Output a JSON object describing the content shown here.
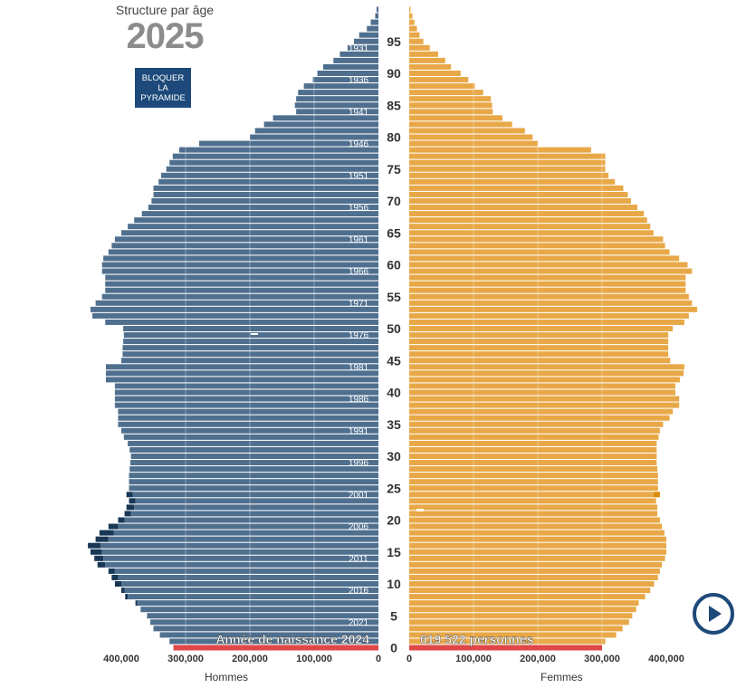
{
  "header": {
    "subtitle": "Structure par âge",
    "year": "2025"
  },
  "controls": {
    "lock_label": "BLOQUER LA PYRAMIDE",
    "play_icon": "play-icon"
  },
  "colors": {
    "men": "#4f6f8f",
    "men_excess": "#173755",
    "women": "#e8a847",
    "women_excess": "#dd8b0a",
    "highlight": "#e04848",
    "accent": "#1d4a7a"
  },
  "chart_data": {
    "type": "bar",
    "title": "Structure par âge",
    "year": 2025,
    "left_label": "Hommes",
    "right_label": "Femmes",
    "x_ticks_left": [
      "400,000",
      "300,000",
      "200,000",
      "100,000",
      "0"
    ],
    "x_ticks_right": [
      "0",
      "100,000",
      "200,000",
      "300,000",
      "400,000"
    ],
    "x_range": [
      0,
      450000
    ],
    "age_range": [
      0,
      100
    ],
    "age_ticks": [
      0,
      5,
      10,
      15,
      20,
      25,
      30,
      35,
      40,
      45,
      50,
      55,
      60,
      65,
      70,
      75,
      80,
      85,
      90,
      95
    ],
    "birth_year_labels": [
      {
        "age": 4,
        "label": "2021"
      },
      {
        "age": 9,
        "label": "2016"
      },
      {
        "age": 14,
        "label": "2011"
      },
      {
        "age": 19,
        "label": "2006"
      },
      {
        "age": 24,
        "label": "2001"
      },
      {
        "age": 29,
        "label": "1996"
      },
      {
        "age": 34,
        "label": "1991"
      },
      {
        "age": 39,
        "label": "1986"
      },
      {
        "age": 44,
        "label": "1981"
      },
      {
        "age": 49,
        "label": "1976"
      },
      {
        "age": 54,
        "label": "1971"
      },
      {
        "age": 59,
        "label": "1966"
      },
      {
        "age": 64,
        "label": "1961"
      },
      {
        "age": 69,
        "label": "1956"
      },
      {
        "age": 74,
        "label": "1951"
      },
      {
        "age": 79,
        "label": "1946"
      },
      {
        "age": 84,
        "label": "1941"
      },
      {
        "age": 89,
        "label": "1936"
      },
      {
        "age": 94,
        "label": "1931"
      }
    ],
    "highlight": {
      "age": 0,
      "birth_label": "Année de naissance 2024",
      "count_label": "619 522 personnes"
    },
    "men": [
      319000,
      325000,
      340000,
      350000,
      355000,
      360000,
      370000,
      375000,
      390000,
      395000,
      400000,
      405000,
      410000,
      425000,
      428000,
      430000,
      432000,
      420000,
      412000,
      405000,
      395000,
      385000,
      380000,
      378000,
      382000,
      388000,
      388000,
      388000,
      387000,
      386000,
      385000,
      387000,
      390000,
      396000,
      400000,
      405000,
      405000,
      405000,
      410000,
      410000,
      410000,
      410000,
      424000,
      424000,
      424000,
      400000,
      398000,
      398000,
      397000,
      396000,
      397000,
      425000,
      445000,
      448000,
      440000,
      430000,
      425000,
      425000,
      425000,
      430000,
      430000,
      428000,
      420000,
      415000,
      410000,
      400000,
      390000,
      380000,
      368000,
      358000,
      353000,
      350000,
      350000,
      342000,
      338000,
      330000,
      325000,
      320000,
      310000,
      279000,
      200000,
      192000,
      178000,
      164000,
      128000,
      130000,
      128000,
      125000,
      116000,
      102000,
      95000,
      86000,
      70000,
      60000,
      48000,
      38000,
      30000,
      18000,
      12000,
      5000,
      3000
    ],
    "men_excess": [
      0,
      0,
      0,
      0,
      0,
      0,
      0,
      3000,
      4000,
      5000,
      10000,
      10000,
      10000,
      12000,
      14000,
      18000,
      20000,
      20000,
      22000,
      15000,
      10000,
      10000,
      12000,
      10000,
      10000,
      0,
      0,
      0,
      0,
      0,
      0,
      0,
      0,
      0,
      0,
      0,
      0,
      0,
      0,
      0,
      0,
      0,
      0,
      0,
      0,
      0,
      0,
      0,
      0,
      0,
      0,
      0,
      0,
      0,
      0,
      0,
      0,
      0,
      0,
      0,
      0,
      0,
      0,
      0,
      0,
      0,
      0,
      0,
      0,
      0,
      0,
      0,
      0,
      0,
      0,
      0,
      0,
      0,
      0,
      0,
      0,
      0,
      0,
      0,
      0,
      0,
      0,
      0,
      0,
      0,
      0,
      0,
      0,
      0,
      0,
      0,
      0,
      0,
      0,
      0,
      0
    ],
    "women": [
      300000,
      305000,
      322000,
      332000,
      342000,
      347000,
      353000,
      357000,
      367000,
      375000,
      381000,
      387000,
      390000,
      393000,
      398000,
      400000,
      400000,
      400000,
      397000,
      393000,
      390000,
      386000,
      386000,
      384000,
      380000,
      387000,
      387000,
      387000,
      386000,
      385000,
      385000,
      385000,
      385000,
      388000,
      390000,
      395000,
      405000,
      410000,
      420000,
      420000,
      414000,
      414000,
      421000,
      427000,
      428000,
      406000,
      403000,
      403000,
      403000,
      403000,
      410000,
      428000,
      435000,
      448000,
      440000,
      435000,
      430000,
      430000,
      430000,
      440000,
      433000,
      420000,
      405000,
      398000,
      395000,
      380000,
      375000,
      370000,
      365000,
      355000,
      345000,
      340000,
      333000,
      320000,
      310000,
      305000,
      305000,
      305000,
      283000,
      200000,
      192000,
      180000,
      160000,
      145000,
      130000,
      129000,
      127000,
      115000,
      102000,
      92000,
      80000,
      65000,
      56000,
      45000,
      32000,
      22000,
      16000,
      12000,
      8000,
      5000,
      2000
    ],
    "women_excess": [
      0,
      0,
      0,
      0,
      0,
      0,
      0,
      0,
      0,
      0,
      0,
      0,
      0,
      0,
      0,
      0,
      0,
      0,
      0,
      0,
      0,
      0,
      0,
      0,
      10000,
      0,
      0,
      0,
      0,
      0,
      0,
      0,
      0,
      0,
      0,
      0,
      0,
      0,
      0,
      0,
      0,
      0,
      0,
      0,
      0,
      0,
      0,
      0,
      0,
      0,
      0,
      0,
      0,
      0,
      0,
      0,
      0,
      0,
      0,
      0,
      0,
      0,
      0,
      0,
      0,
      0,
      0,
      0,
      0,
      0,
      0,
      0,
      0,
      0,
      0,
      0,
      0,
      0,
      0,
      0,
      0,
      0,
      0,
      0,
      0,
      0,
      0,
      0,
      0,
      0,
      0,
      0,
      0,
      0,
      0,
      0,
      0,
      0,
      0,
      0,
      0
    ]
  }
}
